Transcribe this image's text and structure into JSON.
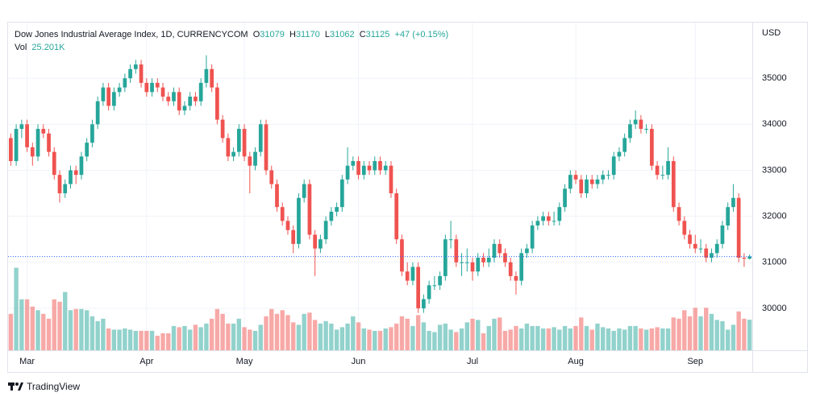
{
  "chart_data": {
    "type": "candlestick",
    "title": "Dow Jones Industrial Average Index, 1D, CURRENCYCOM",
    "ohlc_labels": [
      "O",
      "H",
      "L",
      "C"
    ],
    "change": {
      "value": 47,
      "label": "+47"
    },
    "change_pct": {
      "value": 0.15,
      "label": "(+0.15%)"
    },
    "currency": "USD",
    "up_color": "#26a69a",
    "down_color": "#ef5350",
    "ylim": [
      29088,
      36211
    ],
    "yticks": [
      30000,
      31000,
      32000,
      33000,
      34000,
      35000
    ],
    "xlim": [
      -0.5,
      136.5
    ],
    "xticks": [
      {
        "value": 3,
        "label": "Mar"
      },
      {
        "value": 25,
        "label": "Apr"
      },
      {
        "value": 43,
        "label": "May"
      },
      {
        "value": 64,
        "label": "Jun"
      },
      {
        "value": 85,
        "label": "Jul"
      },
      {
        "value": 104,
        "label": "Aug"
      },
      {
        "value": 126,
        "label": "Sep"
      }
    ],
    "grid": true,
    "candles": [
      [
        33700,
        33800,
        33100,
        33200
      ],
      [
        33200,
        34000,
        33100,
        33900
      ],
      [
        33900,
        34100,
        33700,
        34000
      ],
      [
        34000,
        34100,
        33400,
        33500
      ],
      [
        33500,
        33600,
        33100,
        33300
      ],
      [
        33300,
        34000,
        33200,
        33900
      ],
      [
        33900,
        34000,
        33700,
        33800
      ],
      [
        33800,
        33900,
        33300,
        33400
      ],
      [
        33400,
        33500,
        32800,
        32900
      ],
      [
        32900,
        33000,
        32300,
        32500
      ],
      [
        32500,
        32800,
        32400,
        32700
      ],
      [
        32700,
        33100,
        32600,
        33000
      ],
      [
        33000,
        33100,
        32700,
        32900
      ],
      [
        32900,
        33400,
        32800,
        33300
      ],
      [
        33300,
        33700,
        33200,
        33600
      ],
      [
        33600,
        34100,
        33500,
        34000
      ],
      [
        34000,
        34600,
        33900,
        34500
      ],
      [
        34500,
        34900,
        34400,
        34800
      ],
      [
        34800,
        34900,
        34300,
        34400
      ],
      [
        34400,
        34800,
        34300,
        34700
      ],
      [
        34700,
        34900,
        34600,
        34800
      ],
      [
        34800,
        35100,
        34700,
        35000
      ],
      [
        35000,
        35300,
        34900,
        35200
      ],
      [
        35200,
        35400,
        35100,
        35300
      ],
      [
        35300,
        35400,
        34800,
        34900
      ],
      [
        34900,
        35000,
        34600,
        34700
      ],
      [
        34700,
        35000,
        34600,
        34900
      ],
      [
        34900,
        35000,
        34700,
        34800
      ],
      [
        34800,
        34900,
        34500,
        34600
      ],
      [
        34600,
        34700,
        34400,
        34500
      ],
      [
        34500,
        34800,
        34400,
        34700
      ],
      [
        34700,
        34800,
        34200,
        34300
      ],
      [
        34300,
        34500,
        34200,
        34400
      ],
      [
        34400,
        34700,
        34300,
        34600
      ],
      [
        34600,
        34700,
        34400,
        34500
      ],
      [
        34500,
        35000,
        34400,
        34900
      ],
      [
        34900,
        35500,
        34800,
        35200
      ],
      [
        35200,
        35300,
        34700,
        34800
      ],
      [
        34800,
        34900,
        34000,
        34100
      ],
      [
        34100,
        34200,
        33600,
        33700
      ],
      [
        33700,
        33800,
        33200,
        33300
      ],
      [
        33300,
        33500,
        33200,
        33400
      ],
      [
        33400,
        34000,
        33300,
        33900
      ],
      [
        33900,
        34000,
        33200,
        33300
      ],
      [
        33300,
        33400,
        32500,
        33100
      ],
      [
        33100,
        33500,
        33000,
        33400
      ],
      [
        33400,
        34100,
        33300,
        34000
      ],
      [
        34000,
        34100,
        32900,
        33000
      ],
      [
        33000,
        33100,
        32600,
        32700
      ],
      [
        32700,
        32800,
        32100,
        32200
      ],
      [
        32200,
        32300,
        31800,
        31900
      ],
      [
        31900,
        32000,
        31600,
        31700
      ],
      [
        31700,
        31800,
        31200,
        31400
      ],
      [
        31400,
        32500,
        31300,
        32400
      ],
      [
        32400,
        32800,
        32300,
        32700
      ],
      [
        32700,
        32800,
        31500,
        31600
      ],
      [
        31600,
        31700,
        30700,
        31300
      ],
      [
        31300,
        31600,
        31200,
        31500
      ],
      [
        31500,
        32000,
        31400,
        31900
      ],
      [
        31900,
        32200,
        31800,
        32100
      ],
      [
        32100,
        32300,
        32000,
        32200
      ],
      [
        32200,
        32900,
        32100,
        32800
      ],
      [
        32800,
        33500,
        32700,
        33100
      ],
      [
        33100,
        33300,
        33000,
        33200
      ],
      [
        33200,
        33300,
        32800,
        32900
      ],
      [
        32900,
        33200,
        32800,
        33100
      ],
      [
        33100,
        33200,
        32900,
        33000
      ],
      [
        33000,
        33300,
        32900,
        33200
      ],
      [
        33200,
        33300,
        32900,
        33000
      ],
      [
        33000,
        33200,
        32900,
        33100
      ],
      [
        33100,
        33200,
        32400,
        32500
      ],
      [
        32500,
        32600,
        31400,
        31500
      ],
      [
        31500,
        31600,
        30700,
        30800
      ],
      [
        30800,
        31000,
        30500,
        30600
      ],
      [
        30600,
        31000,
        30500,
        30900
      ],
      [
        30900,
        31000,
        29900,
        30000
      ],
      [
        30000,
        30300,
        29900,
        30200
      ],
      [
        30200,
        30600,
        30100,
        30500
      ],
      [
        30500,
        30700,
        30400,
        30500
      ],
      [
        30500,
        30800,
        30400,
        30700
      ],
      [
        30700,
        31600,
        30600,
        31500
      ],
      [
        31500,
        31900,
        31300,
        31500
      ],
      [
        31500,
        31600,
        30900,
        31000
      ],
      [
        31000,
        31200,
        30700,
        31000
      ],
      [
        31000,
        31300,
        30800,
        31000
      ],
      [
        31000,
        31100,
        30600,
        30800
      ],
      [
        30800,
        31200,
        30700,
        31100
      ],
      [
        31100,
        31200,
        30900,
        31000
      ],
      [
        31000,
        31300,
        30900,
        31100
      ],
      [
        31100,
        31500,
        31000,
        31400
      ],
      [
        31400,
        31500,
        31100,
        31200
      ],
      [
        31200,
        31300,
        30900,
        31000
      ],
      [
        31000,
        31100,
        30600,
        30700
      ],
      [
        30700,
        30800,
        30300,
        30600
      ],
      [
        30600,
        31300,
        30500,
        31200
      ],
      [
        31200,
        31400,
        31100,
        31300
      ],
      [
        31300,
        31900,
        31200,
        31800
      ],
      [
        31800,
        32000,
        31700,
        31900
      ],
      [
        31900,
        32100,
        31800,
        32000
      ],
      [
        32000,
        32100,
        31800,
        31900
      ],
      [
        31900,
        32100,
        31800,
        31900
      ],
      [
        31900,
        32300,
        31800,
        32200
      ],
      [
        32200,
        32700,
        32100,
        32600
      ],
      [
        32600,
        33000,
        32500,
        32900
      ],
      [
        32900,
        33000,
        32700,
        32800
      ],
      [
        32800,
        32900,
        32400,
        32500
      ],
      [
        32500,
        32900,
        32400,
        32800
      ],
      [
        32800,
        32900,
        32600,
        32700
      ],
      [
        32700,
        32900,
        32600,
        32800
      ],
      [
        32800,
        33000,
        32700,
        32900
      ],
      [
        32900,
        33000,
        32800,
        32900
      ],
      [
        32900,
        33400,
        32800,
        33300
      ],
      [
        33300,
        33500,
        33200,
        33400
      ],
      [
        33400,
        33800,
        33300,
        33700
      ],
      [
        33700,
        34100,
        33600,
        34000
      ],
      [
        34000,
        34300,
        33900,
        34100
      ],
      [
        34100,
        34200,
        33800,
        33900
      ],
      [
        33900,
        34000,
        33800,
        33900
      ],
      [
        33900,
        34000,
        33000,
        33100
      ],
      [
        33100,
        33200,
        32800,
        32900
      ],
      [
        32900,
        33100,
        32800,
        32900
      ],
      [
        32900,
        33500,
        32800,
        33200
      ],
      [
        33200,
        33300,
        32100,
        32200
      ],
      [
        32200,
        32300,
        31800,
        31900
      ],
      [
        31900,
        32000,
        31500,
        31600
      ],
      [
        31600,
        31700,
        31300,
        31400
      ],
      [
        31400,
        31600,
        31200,
        31300
      ],
      [
        31300,
        31500,
        31200,
        31300
      ],
      [
        31300,
        31400,
        31000,
        31100
      ],
      [
        31100,
        31300,
        31000,
        31200
      ],
      [
        31200,
        31500,
        31100,
        31400
      ],
      [
        31400,
        31900,
        31300,
        31800
      ],
      [
        31800,
        32300,
        31700,
        32200
      ],
      [
        32200,
        32700,
        32100,
        32400
      ],
      [
        32400,
        32500,
        31000,
        31100
      ],
      [
        31100,
        31200,
        30900,
        31078
      ],
      [
        31079,
        31170,
        31062,
        31125
      ]
    ],
    "volume": {
      "name": "Vol",
      "ylim": [
        0,
        270
      ],
      "last_label": "25.201K",
      "values": [
        30,
        68,
        42,
        42,
        36,
        33,
        30,
        26,
        42,
        40,
        48,
        33,
        34,
        34,
        33,
        28,
        24,
        26,
        18,
        17,
        17,
        18,
        17,
        16,
        16,
        16,
        16,
        12,
        14,
        14,
        20,
        19,
        20,
        17,
        21,
        19,
        22,
        26,
        34,
        30,
        22,
        22,
        26,
        19,
        17,
        16,
        21,
        28,
        34,
        30,
        33,
        29,
        23,
        21,
        30,
        31,
        25,
        22,
        24,
        22,
        17,
        19,
        22,
        28,
        23,
        18,
        17,
        16,
        16,
        18,
        19,
        22,
        28,
        26,
        20,
        29,
        23,
        16,
        15,
        21,
        22,
        17,
        15,
        18,
        23,
        26,
        25,
        14,
        20,
        26,
        27,
        16,
        17,
        20,
        18,
        22,
        20,
        20,
        18,
        18,
        19,
        17,
        20,
        18,
        20,
        27,
        20,
        17,
        22,
        19,
        18,
        16,
        18,
        17,
        20,
        20,
        18,
        17,
        18,
        19,
        18,
        18,
        27,
        26,
        33,
        28,
        35,
        28,
        35,
        30,
        25,
        24,
        17,
        21,
        32,
        26,
        25.201
      ]
    },
    "footer": "TradingView"
  }
}
